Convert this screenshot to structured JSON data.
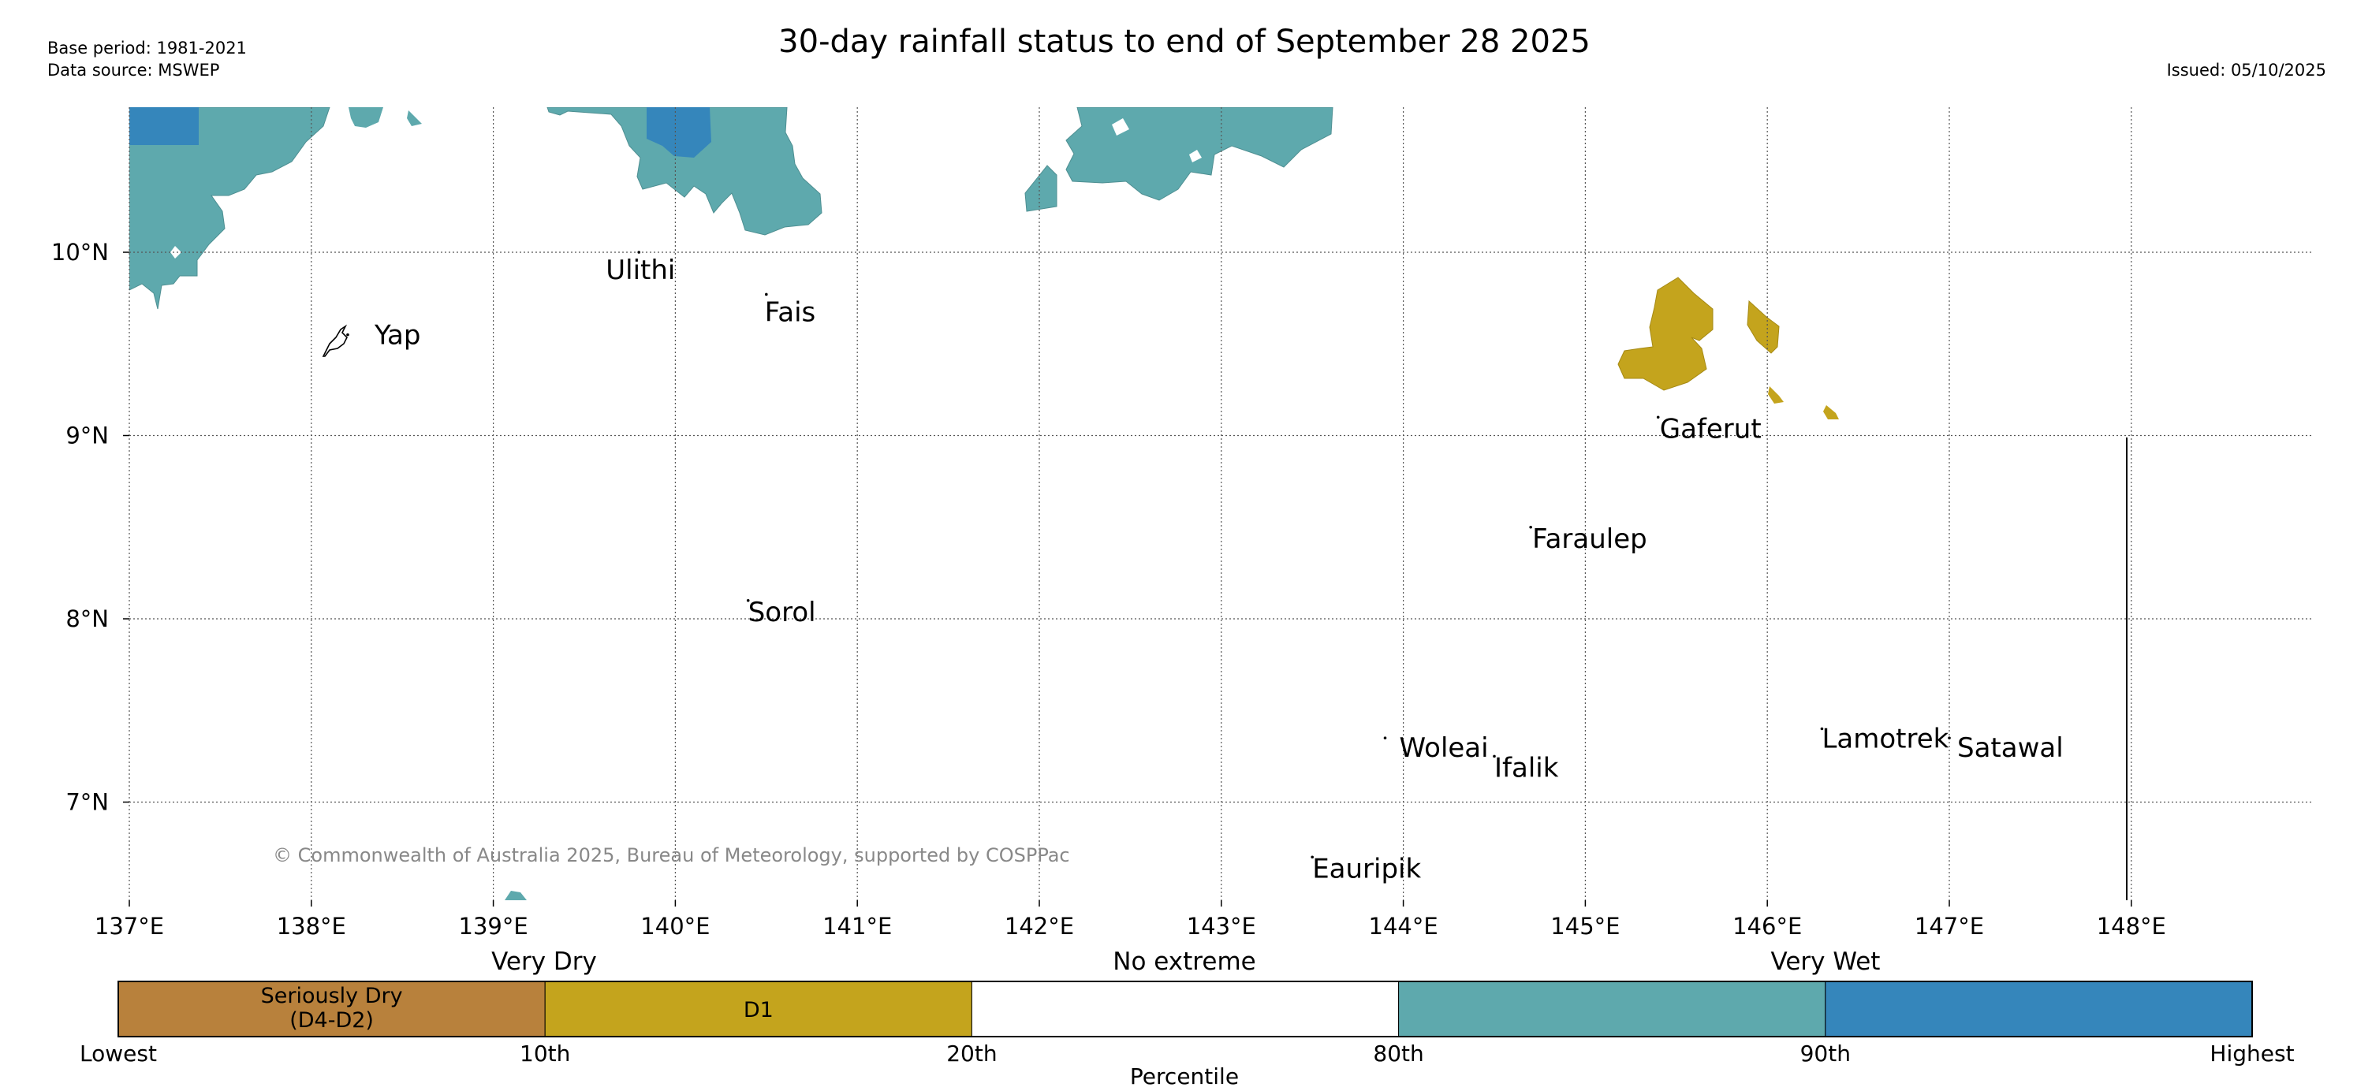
{
  "header": {
    "title": "30-day rainfall status to end of September 28 2025",
    "base_period": "Base period: 1981-2021",
    "data_source": "Data source: MSWEP",
    "issued": "Issued: 05/10/2025"
  },
  "map": {
    "copyright": "© Commonwealth of Australia 2025, Bureau of Meteorology, supported by COSPPac",
    "lon_labels": [
      "137°E",
      "138°E",
      "139°E",
      "140°E",
      "141°E",
      "142°E",
      "143°E",
      "144°E",
      "145°E",
      "146°E",
      "147°E",
      "148°E"
    ],
    "lat_labels": [
      "10°N",
      "9°N",
      "8°N",
      "7°N"
    ],
    "islands": [
      {
        "name": "Yap",
        "lon": 138.2,
        "lat": 9.55
      },
      {
        "name": "Ulithi",
        "lon": 139.8,
        "lat": 10.0
      },
      {
        "name": "Fais",
        "lon": 140.5,
        "lat": 9.77
      },
      {
        "name": "Gaferut",
        "lon": 145.4,
        "lat": 9.1
      },
      {
        "name": "Faraulep",
        "lon": 144.7,
        "lat": 8.5
      },
      {
        "name": "Sorol",
        "lon": 140.4,
        "lat": 8.1
      },
      {
        "name": "Woleai",
        "lon": 143.9,
        "lat": 7.35
      },
      {
        "name": "Ifalik",
        "lon": 144.5,
        "lat": 7.25
      },
      {
        "name": "Lamotrek",
        "lon": 146.3,
        "lat": 7.4
      },
      {
        "name": "Satawal",
        "lon": 147.0,
        "lat": 7.35
      },
      {
        "name": "Eauripik",
        "lon": 143.5,
        "lat": 6.7
      }
    ]
  },
  "legend": {
    "category_labels": [
      "Very Dry",
      "No extreme",
      "Very Wet"
    ],
    "classes": [
      {
        "line1": "Seriously Dry",
        "line2": "(D4-D2)",
        "color": "#b8813c"
      },
      {
        "line1": "D1",
        "line2": "",
        "color": "#c4a41d"
      },
      {
        "line1": "",
        "line2": "",
        "color": "#ffffff"
      },
      {
        "line1": "",
        "line2": "",
        "color": "#5ea9ad"
      },
      {
        "line1": "",
        "line2": "",
        "color": "#3586bb"
      }
    ],
    "tick_labels": [
      "Lowest",
      "10th",
      "20th",
      "80th",
      "90th",
      "Highest"
    ],
    "axis_label": "Percentile"
  },
  "colors": {
    "very_wet": "#5ea9ad",
    "highest": "#3586bb",
    "d1": "#c4a41d",
    "seriously_dry": "#b8813c",
    "copyright_text": "#888888",
    "grid": "#555555"
  }
}
